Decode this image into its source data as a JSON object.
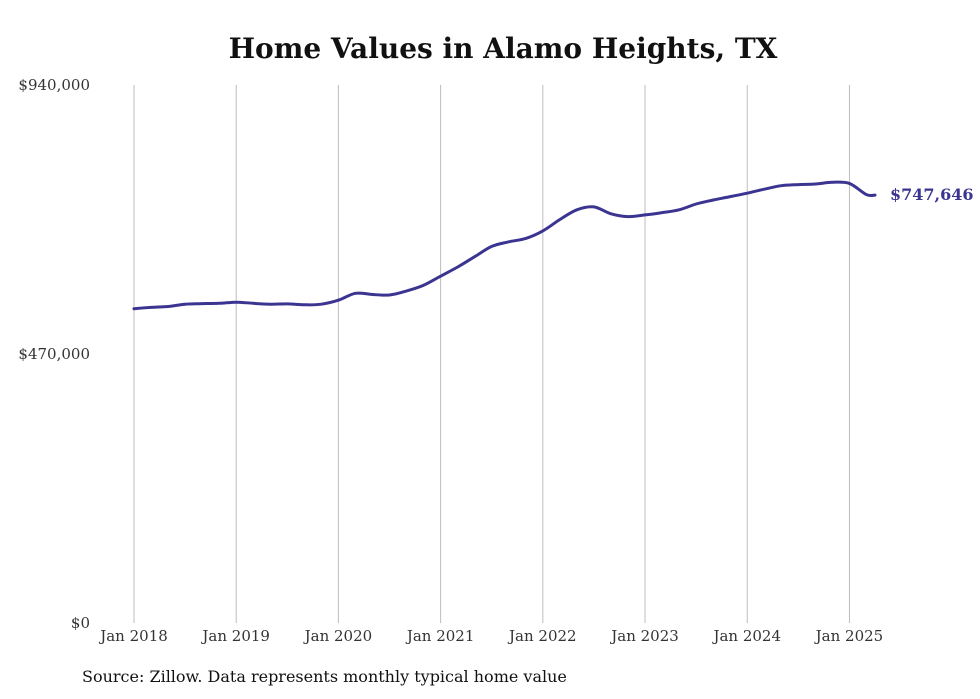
{
  "colors": {
    "line": "#3b3591",
    "grid": "#bdbdbd"
  },
  "chart_data": {
    "type": "line",
    "title": "Home Values in Alamo Heights, TX",
    "source": "Source: Zillow. Data represents monthly typical home value",
    "xlabel": "",
    "ylabel": "",
    "ylim": [
      0,
      940000
    ],
    "y_ticks": [
      {
        "value": 0,
        "label": "$0"
      },
      {
        "value": 470000,
        "label": "$470,000"
      },
      {
        "value": 940000,
        "label": "$940,000"
      }
    ],
    "x_ticks": [
      {
        "value": "2018-01",
        "label": "Jan 2018"
      },
      {
        "value": "2019-01",
        "label": "Jan 2019"
      },
      {
        "value": "2020-01",
        "label": "Jan 2020"
      },
      {
        "value": "2021-01",
        "label": "Jan 2021"
      },
      {
        "value": "2022-01",
        "label": "Jan 2022"
      },
      {
        "value": "2023-01",
        "label": "Jan 2023"
      },
      {
        "value": "2024-01",
        "label": "Jan 2024"
      },
      {
        "value": "2025-01",
        "label": "Jan 2025"
      }
    ],
    "xlim": [
      "2018-01",
      "2025-04"
    ],
    "grid": "vertical",
    "end_label": "$747,646",
    "series": [
      {
        "x": [
          "2018-01",
          "2018-03",
          "2018-05",
          "2018-07",
          "2018-09",
          "2018-11",
          "2019-01",
          "2019-03",
          "2019-05",
          "2019-07",
          "2019-09",
          "2019-11",
          "2020-01",
          "2020-03",
          "2020-05",
          "2020-07",
          "2020-09",
          "2020-11",
          "2021-01",
          "2021-03",
          "2021-05",
          "2021-07",
          "2021-09",
          "2021-11",
          "2022-01",
          "2022-03",
          "2022-05",
          "2022-07",
          "2022-09",
          "2022-11",
          "2023-01",
          "2023-03",
          "2023-05",
          "2023-07",
          "2023-09",
          "2023-11",
          "2024-01",
          "2024-03",
          "2024-05",
          "2024-07",
          "2024-09",
          "2024-11",
          "2025-01",
          "2025-03",
          "2025-04"
        ],
        "y": [
          549000,
          551500,
          553000,
          557000,
          558000,
          558500,
          560500,
          558500,
          557000,
          557500,
          556000,
          557000,
          564000,
          576000,
          574000,
          573000,
          580000,
          590000,
          606000,
          622000,
          640000,
          658000,
          666000,
          672000,
          685000,
          705000,
          722000,
          727000,
          715000,
          710000,
          713000,
          717000,
          722000,
          732000,
          739000,
          745000,
          751000,
          758000,
          764000,
          766000,
          767000,
          770000,
          768000,
          748500,
          747646
        ]
      }
    ]
  }
}
